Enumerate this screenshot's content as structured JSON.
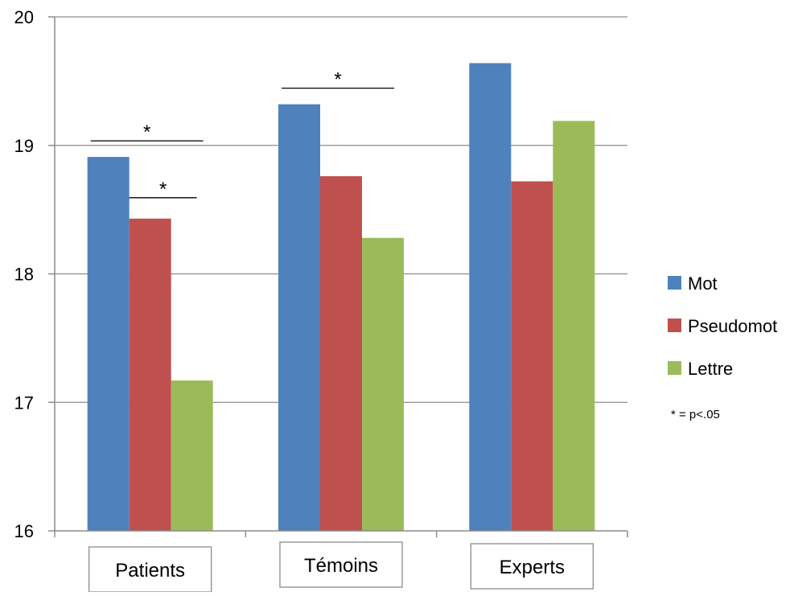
{
  "chart_data": {
    "type": "bar",
    "categories": [
      "Patients",
      "Témoins",
      "Experts"
    ],
    "series": [
      {
        "name": "Mot",
        "color": "#4f81bd",
        "values": [
          18.91,
          19.32,
          19.64
        ]
      },
      {
        "name": "Pseudomot",
        "color": "#c0504d",
        "values": [
          18.43,
          18.76,
          18.72
        ]
      },
      {
        "name": "Lettre",
        "color": "#9bbb59",
        "values": [
          17.17,
          18.28,
          19.19
        ]
      }
    ],
    "ylim": [
      16,
      20
    ],
    "yticks": [
      16,
      17,
      18,
      19,
      20
    ],
    "grid": true,
    "legend_position": "right",
    "legend_note": "* = p<.05",
    "significance": [
      {
        "category": "Patients",
        "series_from": "Mot",
        "series_to": "Lettre",
        "label": "*"
      },
      {
        "category": "Patients",
        "series_from": "Pseudomot",
        "series_to": "Lettre",
        "label": "*"
      },
      {
        "category": "Témoins",
        "series_from": "Mot",
        "series_to": "Lettre",
        "label": "*"
      }
    ]
  }
}
